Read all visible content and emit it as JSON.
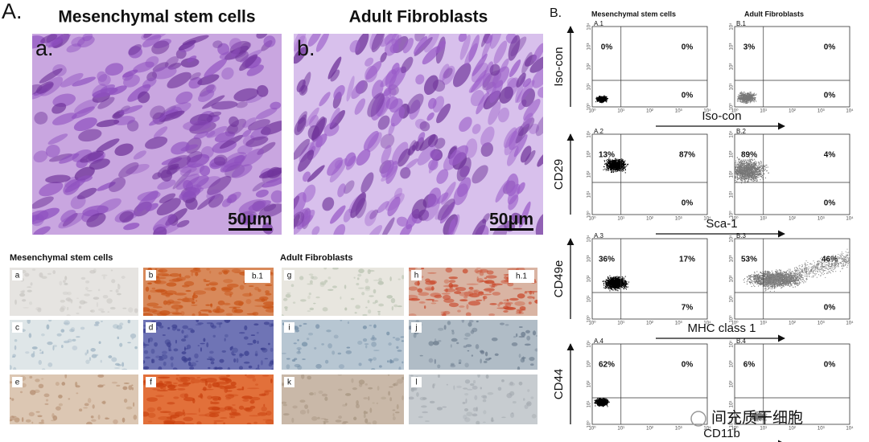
{
  "panel_a": {
    "label": "A.",
    "micrographs": [
      {
        "title": "Mesenchymal stem cells",
        "label": "a.",
        "scale": "50μm"
      },
      {
        "title": "Adult Fibroblasts",
        "label": "b.",
        "scale": "50μm"
      }
    ],
    "staining": {
      "groups": [
        "Mesenchymal stem cells",
        "Adult Fibroblasts"
      ],
      "tiles": [
        {
          "letter": "a"
        },
        {
          "letter": "b",
          "inset": "b.1"
        },
        {
          "letter": "g"
        },
        {
          "letter": "h",
          "inset": "h.1"
        },
        {
          "letter": "c"
        },
        {
          "letter": "d"
        },
        {
          "letter": "i"
        },
        {
          "letter": "j"
        },
        {
          "letter": "e"
        },
        {
          "letter": "f"
        },
        {
          "letter": "k"
        },
        {
          "letter": "l"
        }
      ]
    }
  },
  "panel_b": {
    "label": "B.",
    "columns": [
      "Mesenchymal stem cells",
      "Adult Fibroblasts"
    ],
    "axis_ticks": [
      "10⁰",
      "10¹",
      "10²",
      "10³",
      "10⁴"
    ],
    "rows": [
      {
        "y_label": "Iso-con",
        "x_label": "Iso-con",
        "plots": [
          {
            "id": "A.1",
            "upper_left": "0%",
            "upper_right": "0%",
            "lower_right": "0%"
          },
          {
            "id": "B.1",
            "upper_left": "3%",
            "upper_right": "0%",
            "lower_right": "0%"
          }
        ]
      },
      {
        "y_label": "CD29",
        "x_label": "Sca-1",
        "plots": [
          {
            "id": "A.2",
            "upper_left": "13%",
            "upper_right": "87%",
            "lower_right": "0%"
          },
          {
            "id": "B.2",
            "upper_left": "89%",
            "upper_right": "4%",
            "lower_right": "0%"
          }
        ]
      },
      {
        "y_label": "CD49e",
        "x_label": "MHC class 1",
        "plots": [
          {
            "id": "A.3",
            "upper_left": "36%",
            "upper_right": "17%",
            "lower_right": "7%"
          },
          {
            "id": "B.3",
            "upper_left": "53%",
            "upper_right": "46%",
            "lower_right": "0%"
          }
        ]
      },
      {
        "y_label": "CD44",
        "x_label": "CD11b",
        "plots": [
          {
            "id": "A.4",
            "upper_left": "62%",
            "upper_right": "0%"
          },
          {
            "id": "B.4",
            "upper_left": "6%",
            "upper_right": "0%"
          }
        ]
      }
    ]
  },
  "watermark": "间充质干细胞"
}
